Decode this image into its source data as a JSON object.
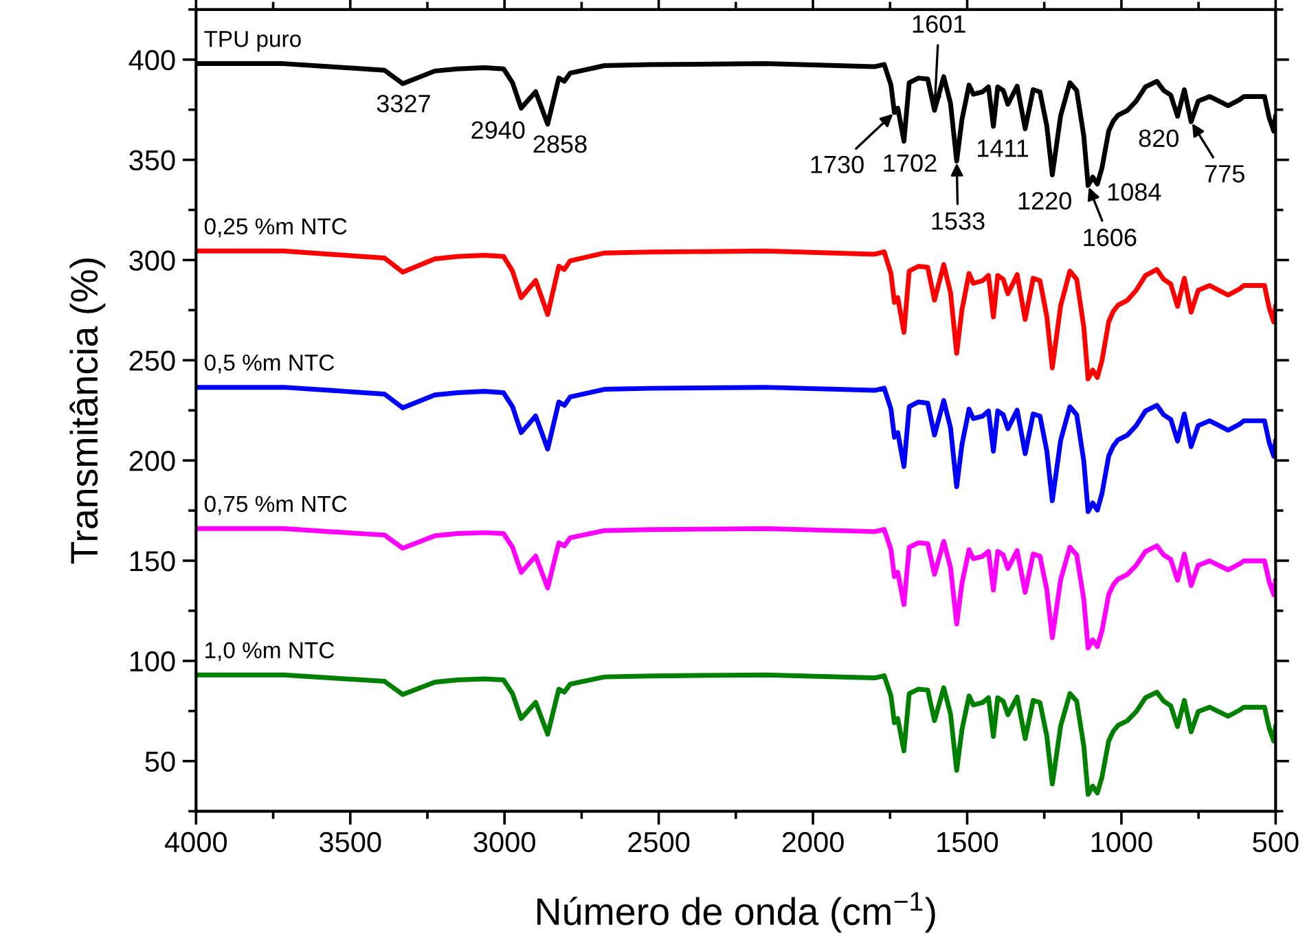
{
  "chart_data": {
    "type": "line",
    "xlabel": "Número de onda (cm$^{−1}$)",
    "ylabel": "Transmitância (%)",
    "x": [
      4000,
      3716,
      3567,
      3389,
      3330,
      3226,
      3153,
      3064,
      3003,
      2974,
      2946,
      2899,
      2860,
      2824,
      2806,
      2787,
      2676,
      2529,
      2155,
      1799,
      1769,
      1747,
      1736,
      1725,
      1705,
      1688,
      1658,
      1628,
      1606,
      1576,
      1554,
      1534,
      1517,
      1494,
      1480,
      1450,
      1431,
      1415,
      1401,
      1383,
      1368,
      1338,
      1312,
      1286,
      1264,
      1242,
      1224,
      1197,
      1167,
      1145,
      1122,
      1108,
      1093,
      1078,
      1063,
      1041,
      1026,
      1011,
      981,
      952,
      922,
      885,
      863,
      840,
      818,
      796,
      774,
      751,
      714,
      654,
      617,
      603,
      536,
      521,
      506,
      500
    ],
    "xlim": [
      4000,
      500
    ],
    "xticks": [
      4000,
      3500,
      3000,
      2500,
      2000,
      1500,
      1000,
      500
    ],
    "ylim": [
      25,
      425
    ],
    "yticks": [
      50,
      100,
      150,
      200,
      250,
      300,
      350,
      400
    ],
    "grid": false,
    "marker": "none",
    "line_style": "solid",
    "series": [
      {
        "name": "TPU puro",
        "color": "#000000",
        "values": [
          398,
          398,
          396.5,
          394.7,
          388,
          394.3,
          395.4,
          396,
          395.4,
          388.5,
          375.8,
          384,
          367.8,
          390.8,
          389.2,
          393.3,
          397,
          397.5,
          398,
          396.5,
          397.6,
          387.3,
          373.6,
          375.8,
          359.3,
          388.5,
          390.8,
          390.3,
          374.7,
          391.5,
          378.2,
          349.4,
          370,
          387.3,
          382.7,
          383.9,
          386.4,
          366.7,
          386.4,
          384.6,
          377.7,
          386.8,
          365.5,
          385,
          383.9,
          367,
          342.5,
          372,
          388.5,
          384.6,
          362,
          337.2,
          341.4,
          337.9,
          346,
          364.5,
          369.4,
          372.3,
          374.6,
          379.3,
          386.4,
          389.2,
          384.6,
          382.3,
          371.7,
          385,
          369,
          379.3,
          381.6,
          377,
          380,
          381.6,
          381.6,
          371,
          364.3,
          372
        ]
      },
      {
        "name": "0,25 %m NTC",
        "color": "#ff0000",
        "values": [
          304.5,
          304.5,
          302.9,
          301,
          294,
          300.6,
          301.8,
          302.4,
          301.8,
          294.5,
          281.2,
          289.8,
          272.8,
          296.9,
          295.3,
          299.6,
          303.5,
          304,
          304.5,
          302.9,
          304.1,
          293.3,
          278.9,
          281.2,
          263.9,
          294.5,
          296.9,
          296.4,
          280,
          297.7,
          283.7,
          253.5,
          275.1,
          293.3,
          288.4,
          289.7,
          292.3,
          271.6,
          292.3,
          290.4,
          283.2,
          292.7,
          270.4,
          290.9,
          289.7,
          272,
          246.2,
          277.2,
          294.5,
          290.4,
          266.7,
          240.7,
          245.1,
          241.4,
          249.9,
          269.3,
          274.5,
          277.5,
          279.9,
          284.9,
          292.3,
          295.3,
          290.4,
          288,
          276.9,
          290.9,
          274,
          284.9,
          287.3,
          282.5,
          285.6,
          287.3,
          287.3,
          276.2,
          269.1,
          277.2
        ]
      },
      {
        "name": "0,5 %m NTC",
        "color": "#0000ff",
        "values": [
          236.5,
          236.5,
          235,
          233.1,
          226.3,
          232.7,
          233.8,
          234.5,
          233.8,
          226.8,
          213.9,
          222.2,
          205.7,
          229.2,
          227.5,
          231.7,
          235.5,
          236,
          236.5,
          235,
          236.1,
          225.6,
          211.6,
          213.9,
          197,
          226.8,
          229.2,
          228.6,
          212.7,
          229.9,
          216.3,
          186.9,
          207.9,
          225.6,
          220.9,
          222.1,
          224.7,
          204.6,
          224.7,
          222.8,
          215.8,
          225.1,
          203.4,
          223.2,
          222.1,
          204.9,
          179.9,
          210,
          226.8,
          222.8,
          199.8,
          174.5,
          178.8,
          175.2,
          183.5,
          202.3,
          207.3,
          210.3,
          212.6,
          217.4,
          224.7,
          227.5,
          222.8,
          220.5,
          209.7,
          223.2,
          206.9,
          217.4,
          219.8,
          215.1,
          218.1,
          219.8,
          219.8,
          209,
          202.1,
          210
        ]
      },
      {
        "name": "0,75 %m NTC",
        "color": "#ff00ff",
        "values": [
          166,
          166,
          164.5,
          162.8,
          156.2,
          162.4,
          163.5,
          164,
          163.5,
          156.7,
          144.2,
          152.3,
          136.4,
          158.9,
          157.4,
          161.4,
          165,
          165.5,
          166,
          164.5,
          165.6,
          155.5,
          142.1,
          144.2,
          128.1,
          156.7,
          158.9,
          158.5,
          143.2,
          159.6,
          146.6,
          118.4,
          138.6,
          155.5,
          151,
          152.2,
          154.6,
          135.3,
          154.6,
          152.9,
          146.1,
          155,
          134.2,
          153.3,
          152.2,
          135.6,
          111.6,
          140.5,
          156.7,
          152.9,
          130.7,
          106.4,
          110.5,
          107.1,
          115,
          133.2,
          138,
          140.8,
          143.1,
          147.7,
          154.6,
          157.4,
          152.9,
          150.6,
          140.2,
          153.3,
          137.6,
          147.7,
          149.9,
          145.4,
          148.4,
          149.9,
          149.9,
          139.5,
          133,
          140.5
        ]
      },
      {
        "name": "1,0 %m NTC",
        "color": "#008000",
        "values": [
          93,
          93,
          91.5,
          89.8,
          83.2,
          89.4,
          90.5,
          91,
          90.5,
          83.7,
          71.2,
          79.3,
          63.4,
          85.9,
          84.4,
          88.4,
          92,
          92.5,
          93,
          91.5,
          92.6,
          82.5,
          69.1,
          71.2,
          55.1,
          83.7,
          85.9,
          85.5,
          70.2,
          86.6,
          73.6,
          45.4,
          65.6,
          82.5,
          78,
          79.2,
          81.6,
          62.3,
          81.6,
          79.9,
          73.1,
          82,
          61.2,
          80.3,
          79.2,
          62.6,
          38.6,
          67.5,
          83.7,
          79.9,
          57.7,
          33.4,
          37.5,
          34.1,
          42,
          60.2,
          65,
          67.8,
          70.1,
          74.7,
          81.6,
          84.4,
          79.9,
          77.6,
          67.2,
          80.3,
          64.6,
          74.7,
          76.9,
          72.4,
          75.4,
          76.9,
          76.9,
          66.5,
          60,
          67.5
        ]
      }
    ],
    "annotations": [
      {
        "text": "3327",
        "x": 3327,
        "y": 388
      },
      {
        "text": "2940",
        "x": 2946,
        "y": 375.8
      },
      {
        "text": "2858",
        "x": 2860,
        "y": 367.8
      },
      {
        "text": "1730",
        "x": 1736,
        "y": 373.6
      },
      {
        "text": "1702",
        "x": 1705,
        "y": 359.3
      },
      {
        "text": "1601",
        "x": 1606,
        "y": 374.7
      },
      {
        "text": "1411",
        "x": 1415,
        "y": 366.7
      },
      {
        "text": "1533",
        "x": 1534,
        "y": 349.4
      },
      {
        "text": "1220",
        "x": 1224,
        "y": 342.5
      },
      {
        "text": "1606",
        "x": 1108,
        "y": 337.2
      },
      {
        "text": "1084",
        "x": 1078,
        "y": 337.9
      },
      {
        "text": "820",
        "x": 818,
        "y": 371.7
      },
      {
        "text": "775",
        "x": 774,
        "y": 369
      }
    ]
  }
}
